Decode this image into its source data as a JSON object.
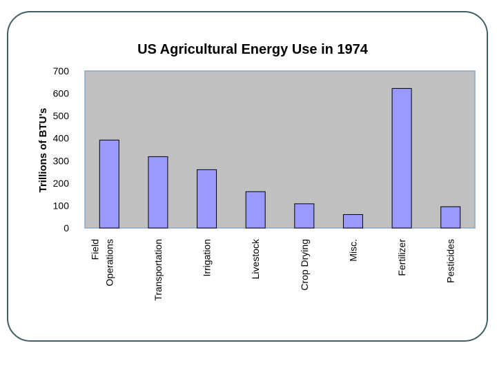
{
  "chart_data": {
    "type": "bar",
    "title": "US Agricultural Energy Use in 1974",
    "xlabel": "",
    "ylabel": "Trillions of BTU's",
    "ylim": [
      0,
      700
    ],
    "yticks": [
      0,
      100,
      200,
      300,
      400,
      500,
      600,
      700
    ],
    "grid": false,
    "categories": [
      "Field Operations",
      "Transportation",
      "Irrigation",
      "Livestock",
      "Crop Drying",
      "Misc.",
      "Fertilizer",
      "Pesticides"
    ],
    "category_lines": [
      [
        "Field",
        "Operations"
      ],
      [
        "Transportation"
      ],
      [
        "Irrigation"
      ],
      [
        "Livestock"
      ],
      [
        "Crop Drying"
      ],
      [
        "Misc."
      ],
      [
        "Fertilizer"
      ],
      [
        "Pesticides"
      ]
    ],
    "values": [
      392,
      318,
      260,
      162,
      108,
      60,
      622,
      95
    ],
    "colors": {
      "bar_fill": "#9999ff",
      "bar_stroke": "#000000",
      "plot_bg": "#c0c0c0",
      "plot_border": "#8aa6c8",
      "frame": "#3f5f5f"
    }
  }
}
